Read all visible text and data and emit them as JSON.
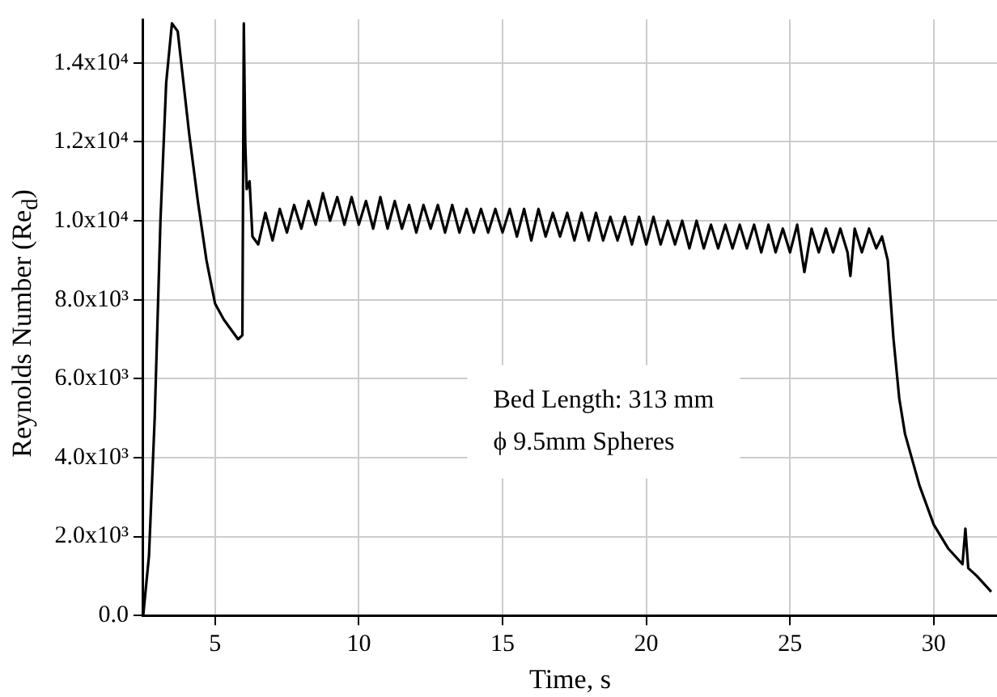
{
  "chart_data": {
    "type": "line",
    "xlabel": "Time, s",
    "ylabel": "Reynolds Number (Re$_{d}$)",
    "xlim": [
      2.5,
      32.2
    ],
    "xticks": [
      5,
      10,
      15,
      20,
      25,
      30
    ],
    "ylim": [
      0,
      15100
    ],
    "yticks": [
      {
        "value": 0,
        "label": "0.0"
      },
      {
        "value": 2000,
        "label": "2.0x10³"
      },
      {
        "value": 4000,
        "label": "4.0x10³"
      },
      {
        "value": 6000,
        "label": "6.0x10³"
      },
      {
        "value": 8000,
        "label": "8.0x10³"
      },
      {
        "value": 10000,
        "label": "1.0x10⁴"
      },
      {
        "value": 12000,
        "label": "1.2x10⁴"
      },
      {
        "value": 14000,
        "label": "1.4x10⁴"
      }
    ],
    "grid": true,
    "legend": false,
    "marker": "none",
    "line_style": "solid",
    "annotations": [
      "Bed Length: 313 mm",
      "ϕ 9.5mm Spheres"
    ],
    "series": [
      {
        "color": "#000000",
        "x": [
          2.5,
          2.7,
          2.9,
          3.1,
          3.3,
          3.5,
          3.7,
          3.9,
          4.1,
          4.4,
          4.7,
          5.0,
          5.3,
          5.6,
          5.8,
          5.95,
          6.0,
          6.05,
          6.1,
          6.2,
          6.3,
          6.5,
          6.75,
          7,
          7.25,
          7.5,
          7.75,
          8,
          8.25,
          8.5,
          8.75,
          9,
          9.25,
          9.5,
          9.75,
          10,
          10.25,
          10.5,
          10.75,
          11,
          11.25,
          11.5,
          11.75,
          12,
          12.25,
          12.5,
          12.75,
          13,
          13.25,
          13.5,
          13.75,
          14,
          14.25,
          14.5,
          14.75,
          15,
          15.25,
          15.5,
          15.75,
          16,
          16.25,
          16.5,
          16.75,
          17,
          17.25,
          17.5,
          17.75,
          18,
          18.25,
          18.5,
          18.75,
          19,
          19.25,
          19.5,
          19.75,
          20,
          20.25,
          20.5,
          20.75,
          21,
          21.25,
          21.5,
          21.75,
          22,
          22.25,
          22.5,
          22.75,
          23,
          23.25,
          23.5,
          23.75,
          24,
          24.25,
          24.5,
          24.75,
          25,
          25.25,
          25.5,
          25.75,
          26,
          26.25,
          26.5,
          26.75,
          27,
          27.1,
          27.25,
          27.5,
          27.75,
          28,
          28.2,
          28.4,
          28.6,
          28.8,
          29.0,
          29.5,
          30.0,
          30.5,
          31.0,
          31.1,
          31.2,
          31.5,
          32.0
        ],
        "values": [
          0,
          1500,
          5000,
          10000,
          13500,
          15000,
          14800,
          13500,
          12200,
          10500,
          9000,
          7900,
          7500,
          7200,
          7000,
          7100,
          15000,
          12000,
          10800,
          11000,
          9600,
          9400,
          10200,
          9500,
          10300,
          9700,
          10400,
          9800,
          10500,
          9900,
          10700,
          10000,
          10600,
          9900,
          10600,
          9900,
          10500,
          9800,
          10600,
          9800,
          10500,
          9800,
          10400,
          9700,
          10400,
          9800,
          10400,
          9700,
          10400,
          9700,
          10300,
          9700,
          10300,
          9700,
          10300,
          9700,
          10300,
          9600,
          10300,
          9500,
          10300,
          9600,
          10200,
          9600,
          10200,
          9500,
          10200,
          9500,
          10200,
          9500,
          10100,
          9500,
          10100,
          9400,
          10100,
          9400,
          10100,
          9400,
          10000,
          9400,
          10000,
          9300,
          10000,
          9300,
          9900,
          9300,
          9900,
          9300,
          9900,
          9300,
          9900,
          9200,
          9900,
          9200,
          9800,
          9200,
          9900,
          8700,
          9800,
          9200,
          9800,
          9200,
          9800,
          9200,
          8600,
          9800,
          9200,
          9800,
          9300,
          9600,
          9000,
          7000,
          5500,
          4600,
          3300,
          2300,
          1700,
          1300,
          2200,
          1200,
          1000,
          600
        ]
      }
    ]
  }
}
